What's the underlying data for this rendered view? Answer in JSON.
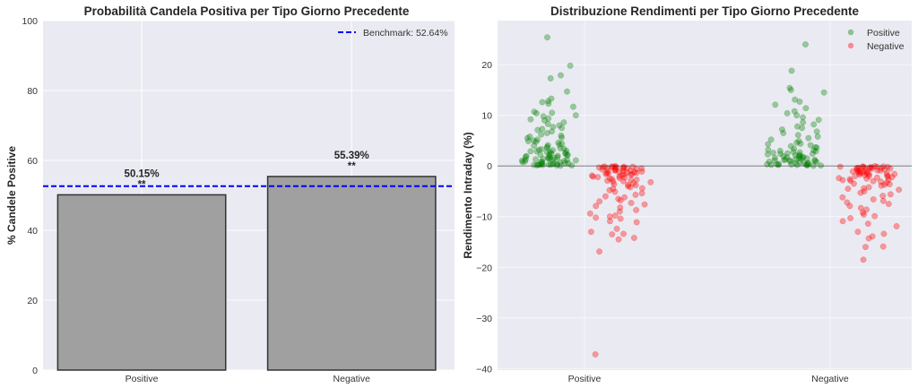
{
  "chart_data": [
    {
      "type": "bar",
      "title": "Probabilità Candela Positiva per Tipo Giorno Precedente",
      "xlabel": "",
      "ylabel": "% Candele Positive",
      "categories": [
        "Positive",
        "Negative"
      ],
      "values": [
        50.15,
        55.39
      ],
      "data_labels": [
        "50.15%",
        "55.39%"
      ],
      "significance": [
        "**",
        "**"
      ],
      "ylim": [
        0,
        100
      ],
      "yticks": [
        0,
        20,
        40,
        60,
        80,
        100
      ],
      "bar_color": "#a0a0a0",
      "bar_edge_color": "#333333",
      "benchmark": {
        "value": 52.64,
        "label": "Benchmark: 52.64%",
        "color": "#0000ff",
        "style": "dashed"
      },
      "legend_position": "top-right",
      "grid": true,
      "background": "#eaeaf2"
    },
    {
      "type": "scatter",
      "title": "Distribuzione Rendimenti per Tipo Giorno Precedente",
      "xlabel": "",
      "ylabel": "Rendimento Intraday (%)",
      "categories": [
        "Positive",
        "Negative"
      ],
      "ylim": [
        -40.3,
        28.7
      ],
      "yticks": [
        -40,
        -30,
        -20,
        -10,
        0,
        10,
        20
      ],
      "legend_position": "top-right",
      "grid": true,
      "background": "#eaeaf2",
      "zero_line": 0,
      "series": [
        {
          "name": "Positive",
          "color": "#008000",
          "groups": [
            [
              25.4,
              19.8,
              17.9,
              17.3,
              14.7,
              13.3,
              12.8,
              12.6,
              12.3,
              11.7,
              10.7,
              10.5,
              10.4,
              10.0,
              9.8,
              9.4,
              9.2,
              9.0,
              8.6,
              8.3,
              8.0,
              7.7,
              7.5,
              7.3,
              7.1,
              6.8,
              6.5,
              6.2,
              6.0,
              5.8,
              5.5,
              5.2,
              5.0,
              4.8,
              4.6,
              4.4,
              4.2,
              4.0,
              3.8,
              3.6,
              3.4,
              3.2,
              3.0,
              2.9,
              2.8,
              2.6,
              2.5,
              2.4,
              2.2,
              2.1,
              2.0,
              1.9,
              1.8,
              1.7,
              1.6,
              1.5,
              1.4,
              1.3,
              1.2,
              1.1,
              1.0,
              0.9,
              0.8,
              0.7,
              0.6,
              0.5,
              0.45,
              0.4,
              0.35,
              0.3,
              0.25,
              0.2,
              0.15,
              0.1,
              0.05,
              3.1,
              2.7,
              2.3,
              1.95,
              1.45,
              1.05,
              0.75,
              0.55,
              0.3,
              0.2,
              0.1,
              4.1,
              3.5,
              2.9,
              2.2,
              1.6,
              1.2,
              0.8,
              0.4,
              5.6,
              4.9,
              3.3,
              1.3,
              0.2
            ],
            [
              24.0,
              18.8,
              15.4,
              15.0,
              14.5,
              13.1,
              12.7,
              12.1,
              11.4,
              10.8,
              10.4,
              10.0,
              9.6,
              9.1,
              8.6,
              8.2,
              7.8,
              7.5,
              7.2,
              6.8,
              6.5,
              6.1,
              5.8,
              5.5,
              5.2,
              4.9,
              4.6,
              4.4,
              4.1,
              3.9,
              3.6,
              3.4,
              3.2,
              3.0,
              2.8,
              2.6,
              2.4,
              2.3,
              2.1,
              2.0,
              1.9,
              1.8,
              1.7,
              1.6,
              1.5,
              1.4,
              1.3,
              1.2,
              1.1,
              1.0,
              0.9,
              0.8,
              0.7,
              0.6,
              0.5,
              0.4,
              0.35,
              0.3,
              0.25,
              0.2,
              0.15,
              0.1,
              0.05,
              2.9,
              2.5,
              2.2,
              1.85,
              1.5,
              1.15,
              0.85,
              0.6,
              0.35,
              0.15,
              3.7,
              3.1,
              2.4,
              1.7,
              1.1,
              0.6,
              0.3,
              4.3,
              2.7,
              1.3,
              0.2
            ]
          ]
        },
        {
          "name": "Negative",
          "color": "#ff0000",
          "groups": [
            [
              -37.2,
              -16.9,
              -14.5,
              -14.2,
              -13.5,
              -13.4,
              -13.0,
              -12.4,
              -11.1,
              -10.9,
              -10.4,
              -10.2,
              -10.0,
              -9.8,
              -9.4,
              -9.0,
              -8.7,
              -8.2,
              -7.9,
              -7.6,
              -7.3,
              -7.0,
              -6.8,
              -6.5,
              -6.2,
              -6.0,
              -5.7,
              -5.4,
              -5.1,
              -4.8,
              -4.5,
              -4.2,
              -4.0,
              -3.8,
              -3.6,
              -3.4,
              -3.2,
              -3.0,
              -2.8,
              -2.6,
              -2.4,
              -2.2,
              -2.0,
              -1.9,
              -1.8,
              -1.7,
              -1.6,
              -1.5,
              -1.4,
              -1.3,
              -1.2,
              -1.1,
              -1.0,
              -0.9,
              -0.8,
              -0.7,
              -0.6,
              -0.5,
              -0.45,
              -0.4,
              -0.35,
              -0.3,
              -0.25,
              -0.2,
              -0.15,
              -0.1,
              -0.05,
              -2.9,
              -2.5,
              -2.1,
              -1.75,
              -1.35,
              -0.95,
              -0.65,
              -0.3,
              -0.15,
              -3.7,
              -3.1,
              -2.3,
              -1.6,
              -1.0,
              -0.5,
              -0.2,
              -4.4,
              -2.7,
              -1.2,
              -0.1
            ],
            [
              -18.5,
              -16.0,
              -15.9,
              -14.3,
              -13.9,
              -13.4,
              -13.0,
              -11.9,
              -11.4,
              -10.9,
              -10.3,
              -9.9,
              -9.6,
              -9.2,
              -8.6,
              -8.3,
              -7.9,
              -7.5,
              -7.2,
              -6.9,
              -6.6,
              -6.2,
              -5.9,
              -5.6,
              -5.3,
              -5.0,
              -4.7,
              -4.4,
              -4.2,
              -3.9,
              -3.7,
              -3.5,
              -3.3,
              -3.1,
              -2.9,
              -2.7,
              -2.5,
              -2.3,
              -2.1,
              -2.0,
              -1.9,
              -1.8,
              -1.7,
              -1.6,
              -1.5,
              -1.4,
              -1.3,
              -1.2,
              -1.1,
              -1.0,
              -0.9,
              -0.8,
              -0.7,
              -0.6,
              -0.5,
              -0.45,
              -0.4,
              -0.35,
              -0.3,
              -0.25,
              -0.2,
              -0.15,
              -0.1,
              -0.05,
              -2.8,
              -2.4,
              -2.0,
              -1.65,
              -1.25,
              -0.85,
              -0.55,
              -0.3,
              -0.15,
              -3.6,
              -3.0,
              -2.2,
              -1.5,
              -0.9,
              -0.4,
              -0.2,
              -4.5,
              -2.6,
              -1.1,
              -0.1
            ]
          ]
        }
      ]
    }
  ]
}
